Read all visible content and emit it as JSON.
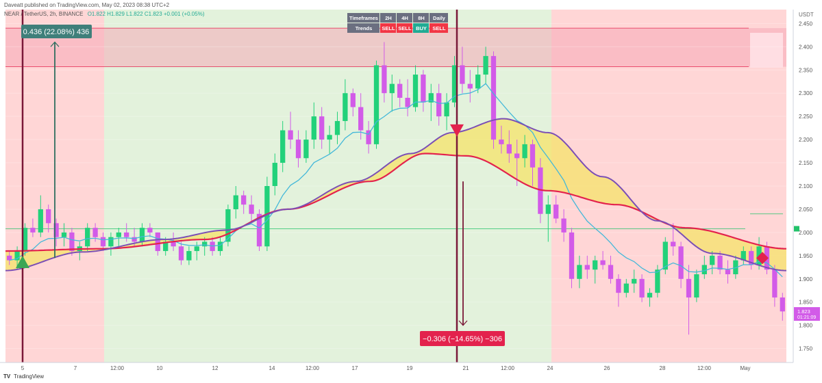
{
  "header": {
    "publisher": "Daveatt published on TradingView.com, May 02, 2023 08:38 UTC+2",
    "symbol": "NEAR / TetherUS, 2h, BINANCE",
    "ohlc": "O1.822 H1.829 L1.822 C1.823 +0.001 (+0.05%)"
  },
  "currency": "USDT",
  "brand": "TradingView",
  "annotations": {
    "long_measure": "0.436 (22.08%) 436",
    "short_measure": "−0.306 (−14.65%) −306",
    "last_price": "1.823",
    "countdown": "01:21:09"
  },
  "colors": {
    "bull": "#22d17a",
    "bear": "#d25be8",
    "ema_fast": "#44b8d9",
    "ema_slow": "#e3224d",
    "curve": "#7b4fb6",
    "fill": "#f6e36a",
    "bg_red": "#ffd6d6",
    "bg_green": "#e3f2dc"
  },
  "trend_table": {
    "header_label": "Timeframes",
    "row_label": "Trends",
    "timeframes": [
      "2H",
      "4H",
      "8H",
      "Daily"
    ],
    "trends": [
      "SELL",
      "SELL",
      "BUY",
      "SELL"
    ],
    "trend_colors": [
      "#f23645",
      "#f23645",
      "#22ab94",
      "#f23645"
    ]
  },
  "chart_data": {
    "type": "candlestick",
    "ylim": [
      1.72,
      2.48
    ],
    "y_ticks": [
      "2.450",
      "2.400",
      "2.350",
      "2.300",
      "2.250",
      "2.200",
      "2.150",
      "2.100",
      "2.050",
      "2.000",
      "1.950",
      "1.900",
      "1.850",
      "1.800",
      "1.750"
    ],
    "x_ticks": [
      "5",
      "7",
      "12:00",
      "10",
      "12",
      "14",
      "12:00",
      "17",
      "19",
      "21",
      "12:00",
      "24",
      "26",
      "28",
      "12:00",
      "May"
    ],
    "signals": [
      {
        "type": "buy",
        "shape": "triangle-up",
        "color": "#3aa655",
        "price": 1.935
      },
      {
        "type": "sell",
        "shape": "triangle-down",
        "color": "#e3224d",
        "price": 2.215
      },
      {
        "type": "exit",
        "shape": "diamond",
        "color": "#e3224d",
        "price": 1.945
      }
    ],
    "horizontal_levels": [
      2.44,
      2.357,
      2.008
    ],
    "last_price": 1.823,
    "candles": [
      [
        1.95,
        1.96,
        1.93,
        1.94
      ],
      [
        1.94,
        1.97,
        1.92,
        1.96
      ],
      [
        1.96,
        2.02,
        1.95,
        2.01
      ],
      [
        2.01,
        2.03,
        1.99,
        2.0
      ],
      [
        2.0,
        2.08,
        1.99,
        2.05
      ],
      [
        2.05,
        2.06,
        2.0,
        2.02
      ],
      [
        2.02,
        2.03,
        1.97,
        1.99
      ],
      [
        1.99,
        2.02,
        1.97,
        2.0
      ],
      [
        2.0,
        2.01,
        1.95,
        1.96
      ],
      [
        1.96,
        1.98,
        1.94,
        1.97
      ],
      [
        1.97,
        2.02,
        1.96,
        2.01
      ],
      [
        2.01,
        2.02,
        1.98,
        1.99
      ],
      [
        1.99,
        2.0,
        1.96,
        1.97
      ],
      [
        1.97,
        2.0,
        1.95,
        1.99
      ],
      [
        1.99,
        2.01,
        1.97,
        2.0
      ],
      [
        2.0,
        2.02,
        1.98,
        1.99
      ],
      [
        1.99,
        2.01,
        1.97,
        1.98
      ],
      [
        1.98,
        2.02,
        1.97,
        2.01
      ],
      [
        2.01,
        2.02,
        1.99,
        2.0
      ],
      [
        2.0,
        2.0,
        1.95,
        1.96
      ],
      [
        1.96,
        1.99,
        1.95,
        1.98
      ],
      [
        1.98,
        2.0,
        1.96,
        1.97
      ],
      [
        1.97,
        1.98,
        1.93,
        1.94
      ],
      [
        1.94,
        1.97,
        1.93,
        1.96
      ],
      [
        1.96,
        1.98,
        1.94,
        1.97
      ],
      [
        1.97,
        1.99,
        1.95,
        1.98
      ],
      [
        1.98,
        1.99,
        1.95,
        1.96
      ],
      [
        1.96,
        1.99,
        1.95,
        1.98
      ],
      [
        1.98,
        2.06,
        1.97,
        2.05
      ],
      [
        2.05,
        2.1,
        2.03,
        2.08
      ],
      [
        2.08,
        2.09,
        2.04,
        2.06
      ],
      [
        2.06,
        2.08,
        2.02,
        2.04
      ],
      [
        2.04,
        2.05,
        1.96,
        1.97
      ],
      [
        1.97,
        2.12,
        1.96,
        2.1
      ],
      [
        2.1,
        2.17,
        2.08,
        2.15
      ],
      [
        2.15,
        2.24,
        2.13,
        2.22
      ],
      [
        2.22,
        2.26,
        2.18,
        2.2
      ],
      [
        2.2,
        2.22,
        2.14,
        2.16
      ],
      [
        2.16,
        2.22,
        2.15,
        2.2
      ],
      [
        2.2,
        2.28,
        2.18,
        2.25
      ],
      [
        2.25,
        2.27,
        2.18,
        2.2
      ],
      [
        2.2,
        2.23,
        2.17,
        2.21
      ],
      [
        2.21,
        2.26,
        2.19,
        2.24
      ],
      [
        2.24,
        2.33,
        2.22,
        2.3
      ],
      [
        2.3,
        2.31,
        2.25,
        2.27
      ],
      [
        2.27,
        2.3,
        2.2,
        2.22
      ],
      [
        2.22,
        2.24,
        2.17,
        2.19
      ],
      [
        2.19,
        2.37,
        2.18,
        2.36
      ],
      [
        2.36,
        2.41,
        2.28,
        2.3
      ],
      [
        2.3,
        2.34,
        2.26,
        2.32
      ],
      [
        2.32,
        2.33,
        2.27,
        2.29
      ],
      [
        2.29,
        2.33,
        2.25,
        2.27
      ],
      [
        2.27,
        2.36,
        2.26,
        2.34
      ],
      [
        2.34,
        2.35,
        2.26,
        2.28
      ],
      [
        2.28,
        2.32,
        2.24,
        2.3
      ],
      [
        2.3,
        2.32,
        2.23,
        2.25
      ],
      [
        2.25,
        2.3,
        2.22,
        2.28
      ],
      [
        2.28,
        2.38,
        2.27,
        2.36
      ],
      [
        2.36,
        2.4,
        2.3,
        2.32
      ],
      [
        2.32,
        2.35,
        2.28,
        2.31
      ],
      [
        2.31,
        2.36,
        2.3,
        2.34
      ],
      [
        2.34,
        2.4,
        2.32,
        2.38
      ],
      [
        2.38,
        2.39,
        2.18,
        2.2
      ],
      [
        2.2,
        2.23,
        2.17,
        2.19
      ],
      [
        2.19,
        2.22,
        2.15,
        2.17
      ],
      [
        2.17,
        2.2,
        2.1,
        2.16
      ],
      [
        2.16,
        2.21,
        2.14,
        2.19
      ],
      [
        2.19,
        2.2,
        2.1,
        2.14
      ],
      [
        2.14,
        2.16,
        2.02,
        2.04
      ],
      [
        2.04,
        2.08,
        1.98,
        2.06
      ],
      [
        2.06,
        2.08,
        2.02,
        2.03
      ],
      [
        2.03,
        2.05,
        1.98,
        2.0
      ],
      [
        2.0,
        2.01,
        1.88,
        1.9
      ],
      [
        1.9,
        1.95,
        1.88,
        1.93
      ],
      [
        1.93,
        1.95,
        1.9,
        1.92
      ],
      [
        1.92,
        1.95,
        1.89,
        1.94
      ],
      [
        1.94,
        1.96,
        1.92,
        1.93
      ],
      [
        1.93,
        1.95,
        1.89,
        1.9
      ],
      [
        1.9,
        1.91,
        1.84,
        1.87
      ],
      [
        1.87,
        1.9,
        1.86,
        1.89
      ],
      [
        1.89,
        1.92,
        1.87,
        1.9
      ],
      [
        1.9,
        1.91,
        1.85,
        1.86
      ],
      [
        1.86,
        1.88,
        1.84,
        1.87
      ],
      [
        1.87,
        1.93,
        1.86,
        1.92
      ],
      [
        1.92,
        1.99,
        1.91,
        1.98
      ],
      [
        1.98,
        2.02,
        1.95,
        1.97
      ],
      [
        1.97,
        1.98,
        1.88,
        1.9
      ],
      [
        1.9,
        1.93,
        1.78,
        1.86
      ],
      [
        1.86,
        1.92,
        1.85,
        1.91
      ],
      [
        1.91,
        1.95,
        1.9,
        1.93
      ],
      [
        1.93,
        1.96,
        1.91,
        1.95
      ],
      [
        1.95,
        1.96,
        1.91,
        1.92
      ],
      [
        1.92,
        1.94,
        1.89,
        1.91
      ],
      [
        1.91,
        1.95,
        1.9,
        1.94
      ],
      [
        1.94,
        1.97,
        1.93,
        1.96
      ],
      [
        1.96,
        1.97,
        1.92,
        1.93
      ],
      [
        1.93,
        1.99,
        1.92,
        1.97
      ],
      [
        1.97,
        1.98,
        1.91,
        1.92
      ],
      [
        1.92,
        1.93,
        1.84,
        1.86
      ],
      [
        1.86,
        1.87,
        1.81,
        1.83
      ]
    ]
  }
}
